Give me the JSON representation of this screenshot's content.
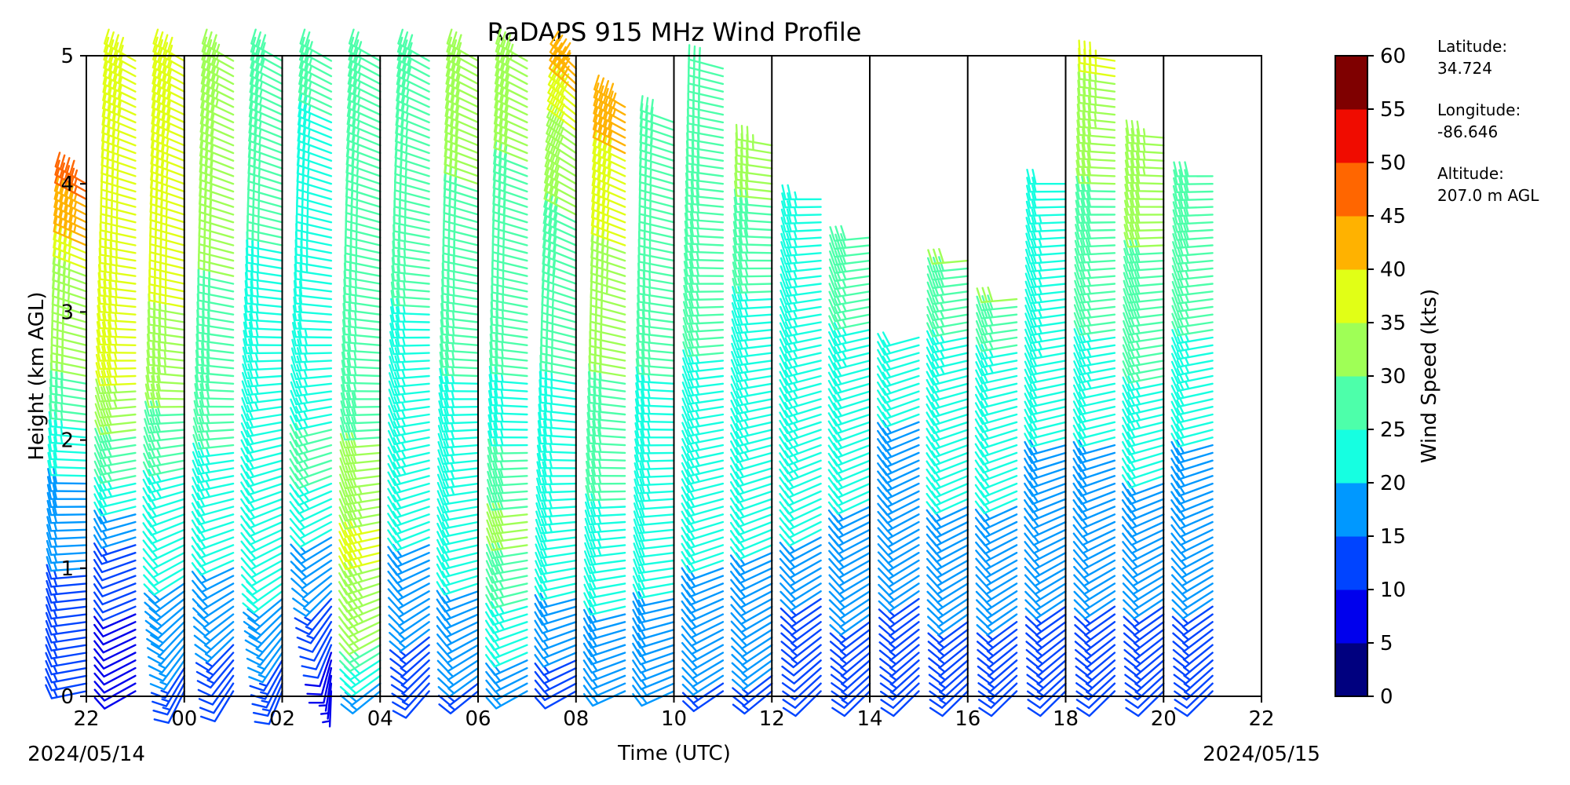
{
  "chart_data": {
    "type": "wind_barbs",
    "title": "RaDAPS 915 MHz Wind Profile",
    "xlabel": "Time (UTC)",
    "ylabel": "Height (km AGL)",
    "xlim": [
      22,
      46
    ],
    "ylim": [
      0,
      5
    ],
    "x_ticks": [
      22,
      24,
      26,
      28,
      30,
      32,
      34,
      36,
      38,
      40,
      42,
      44,
      46
    ],
    "x_tick_labels": [
      "22",
      "00",
      "02",
      "04",
      "06",
      "08",
      "10",
      "12",
      "14",
      "16",
      "18",
      "20",
      "22"
    ],
    "y_ticks": [
      0,
      1,
      2,
      3,
      4,
      5
    ],
    "y_tick_labels": [
      "0",
      "1",
      "2",
      "3",
      "4",
      "5"
    ],
    "start_date_label": "2024/05/14",
    "end_date_label": "2024/05/15",
    "hour_lines": [
      24,
      26,
      28,
      30,
      32,
      34,
      36,
      38,
      40,
      42,
      44
    ],
    "grid": false,
    "colorbar": {
      "label": "Wind Speed (kts)",
      "levels": [
        0,
        5,
        10,
        15,
        20,
        25,
        30,
        35,
        40,
        45,
        50,
        55,
        60
      ],
      "tick_labels": [
        "0",
        "5",
        "10",
        "15",
        "20",
        "25",
        "30",
        "35",
        "40",
        "45",
        "50",
        "55",
        "60"
      ],
      "colors": [
        "#00007f",
        "#0000ed",
        "#0044ff",
        "#0098ff",
        "#16ffe1",
        "#4dffaa",
        "#9fff56",
        "#e1ff16",
        "#ffb200",
        "#ff6600",
        "#f00c00",
        "#7f0000"
      ]
    },
    "site_info": {
      "latitude_label": "Latitude:",
      "latitude": "34.724",
      "longitude_label": "Longitude:",
      "longitude": "-86.646",
      "altitude_label": "Altitude:",
      "altitude": "207.0 m AGL"
    },
    "profiles": [
      {
        "time": 22.0,
        "top_km": 4.05,
        "spd": [
          [
            0,
            14
          ],
          [
            1.0,
            15
          ],
          [
            1.8,
            21
          ],
          [
            2.5,
            30
          ],
          [
            3.3,
            35
          ],
          [
            3.6,
            44
          ],
          [
            4.05,
            46
          ]
        ],
        "dir": [
          [
            0,
            258
          ],
          [
            1.8,
            272
          ],
          [
            4.05,
            300
          ]
        ]
      },
      {
        "time": 23.0,
        "top_km": 5.0,
        "spd": [
          [
            0,
            8
          ],
          [
            1.0,
            11
          ],
          [
            1.7,
            25
          ],
          [
            2.5,
            36
          ],
          [
            5.0,
            38
          ]
        ],
        "dir": [
          [
            0,
            240
          ],
          [
            1.0,
            250
          ],
          [
            2.0,
            262
          ],
          [
            5.0,
            300
          ]
        ]
      },
      {
        "time": 24.0,
        "top_km": 5.0,
        "spd": [
          [
            0,
            12
          ],
          [
            0.6,
            19
          ],
          [
            1.5,
            22
          ],
          [
            2.5,
            33
          ],
          [
            3.5,
            37
          ],
          [
            5.0,
            38
          ]
        ],
        "dir": [
          [
            0,
            205
          ],
          [
            1.0,
            240
          ],
          [
            2.5,
            275
          ],
          [
            5.0,
            300
          ]
        ]
      },
      {
        "time": 25.0,
        "top_km": 5.0,
        "spd": [
          [
            0,
            10
          ],
          [
            0.8,
            19
          ],
          [
            1.5,
            22
          ],
          [
            2.5,
            29
          ],
          [
            4.0,
            31
          ],
          [
            5.0,
            34
          ]
        ],
        "dir": [
          [
            0,
            210
          ],
          [
            1.0,
            245
          ],
          [
            2.5,
            275
          ],
          [
            5.0,
            300
          ]
        ]
      },
      {
        "time": 26.0,
        "top_km": 5.0,
        "spd": [
          [
            0,
            12
          ],
          [
            0.8,
            20
          ],
          [
            1.5,
            21
          ],
          [
            3.0,
            24
          ],
          [
            5.0,
            28
          ]
        ],
        "dir": [
          [
            0,
            200
          ],
          [
            1.0,
            240
          ],
          [
            3.0,
            275
          ],
          [
            5.0,
            300
          ]
        ]
      },
      {
        "time": 27.0,
        "top_km": 5.0,
        "spd": [
          [
            0,
            5
          ],
          [
            0.8,
            15
          ],
          [
            1.8,
            26
          ],
          [
            3.0,
            22
          ],
          [
            5.0,
            26
          ]
        ],
        "dir": [
          [
            0,
            180
          ],
          [
            1.0,
            235
          ],
          [
            3.0,
            275
          ],
          [
            5.0,
            300
          ]
        ]
      },
      {
        "time": 28.0,
        "top_km": 5.0,
        "spd": [
          [
            0,
            16
          ],
          [
            0.5,
            32
          ],
          [
            1.2,
            36
          ],
          [
            2.5,
            26
          ],
          [
            5.0,
            25
          ]
        ],
        "dir": [
          [
            0,
            230
          ],
          [
            1.0,
            255
          ],
          [
            5.0,
            300
          ]
        ]
      },
      {
        "time": 29.0,
        "top_km": 5.0,
        "spd": [
          [
            0,
            12
          ],
          [
            0.8,
            17
          ],
          [
            1.5,
            22
          ],
          [
            3.0,
            25
          ],
          [
            5.0,
            28
          ]
        ],
        "dir": [
          [
            0,
            220
          ],
          [
            1.0,
            245
          ],
          [
            5.0,
            300
          ]
        ]
      },
      {
        "time": 30.0,
        "top_km": 5.0,
        "spd": [
          [
            0,
            14
          ],
          [
            1.0,
            21
          ],
          [
            2.5,
            25
          ],
          [
            4.0,
            30
          ],
          [
            5.0,
            31
          ]
        ],
        "dir": [
          [
            0,
            230
          ],
          [
            1.0,
            255
          ],
          [
            5.0,
            300
          ]
        ]
      },
      {
        "time": 31.0,
        "top_km": 5.0,
        "spd": [
          [
            0,
            16
          ],
          [
            1.3,
            32
          ],
          [
            2.0,
            24
          ],
          [
            3.0,
            26
          ],
          [
            5.0,
            33
          ]
        ],
        "dir": [
          [
            0,
            240
          ],
          [
            1.0,
            260
          ],
          [
            5.0,
            300
          ]
        ]
      },
      {
        "time": 32.0,
        "top_km": 4.95,
        "spd": [
          [
            0,
            12
          ],
          [
            1.0,
            22
          ],
          [
            2.5,
            25
          ],
          [
            4.2,
            32
          ],
          [
            4.95,
            44
          ]
        ],
        "dir": [
          [
            0,
            240
          ],
          [
            1.0,
            260
          ],
          [
            4.0,
            300
          ],
          [
            4.95,
            315
          ]
        ]
      },
      {
        "time": 33.0,
        "top_km": 4.6,
        "spd": [
          [
            0,
            16
          ],
          [
            1.0,
            22
          ],
          [
            2.0,
            28
          ],
          [
            3.0,
            32
          ],
          [
            4.0,
            38
          ],
          [
            4.6,
            44
          ]
        ],
        "dir": [
          [
            0,
            245
          ],
          [
            1.0,
            262
          ],
          [
            3.0,
            285
          ],
          [
            4.6,
            300
          ]
        ]
      },
      {
        "time": 34.0,
        "top_km": 4.5,
        "spd": [
          [
            0,
            16
          ],
          [
            1.0,
            21
          ],
          [
            2.0,
            24
          ],
          [
            3.0,
            26
          ],
          [
            4.5,
            28
          ]
        ],
        "dir": [
          [
            0,
            245
          ],
          [
            1.0,
            262
          ],
          [
            4.5,
            290
          ]
        ]
      },
      {
        "time": 35.0,
        "top_km": 4.9,
        "spd": [
          [
            0,
            14
          ],
          [
            0.8,
            19
          ],
          [
            1.5,
            22
          ],
          [
            3.0,
            26
          ],
          [
            4.9,
            30
          ]
        ],
        "dir": [
          [
            0,
            235
          ],
          [
            1.0,
            250
          ],
          [
            4.9,
            285
          ]
        ]
      },
      {
        "time": 36.0,
        "top_km": 4.3,
        "spd": [
          [
            0,
            14
          ],
          [
            0.8,
            18
          ],
          [
            1.5,
            22
          ],
          [
            3.0,
            24
          ],
          [
            4.3,
            33
          ]
        ],
        "dir": [
          [
            0,
            230
          ],
          [
            1.0,
            245
          ],
          [
            4.3,
            280
          ]
        ]
      },
      {
        "time": 37.0,
        "top_km": 3.9,
        "spd": [
          [
            0,
            10
          ],
          [
            0.8,
            15
          ],
          [
            1.5,
            22
          ],
          [
            2.5,
            24
          ],
          [
            3.9,
            24
          ]
        ],
        "dir": [
          [
            0,
            225
          ],
          [
            1.0,
            240
          ],
          [
            3.9,
            270
          ]
        ]
      },
      {
        "time": 38.0,
        "top_km": 3.6,
        "spd": [
          [
            0,
            12
          ],
          [
            0.8,
            16
          ],
          [
            1.5,
            20
          ],
          [
            2.5,
            22
          ],
          [
            3.6,
            30
          ]
        ],
        "dir": [
          [
            0,
            225
          ],
          [
            1.0,
            240
          ],
          [
            3.6,
            265
          ]
        ]
      },
      {
        "time": 39.0,
        "top_km": 2.8,
        "spd": [
          [
            0,
            12
          ],
          [
            0.8,
            15
          ],
          [
            1.5,
            18
          ],
          [
            2.8,
            22
          ]
        ],
        "dir": [
          [
            0,
            225
          ],
          [
            1.0,
            238
          ],
          [
            2.8,
            255
          ]
        ]
      },
      {
        "time": 40.0,
        "top_km": 3.4,
        "spd": [
          [
            0,
            12
          ],
          [
            0.8,
            16
          ],
          [
            1.5,
            20
          ],
          [
            2.5,
            22
          ],
          [
            3.4,
            30
          ]
        ],
        "dir": [
          [
            0,
            225
          ],
          [
            1.0,
            240
          ],
          [
            3.4,
            265
          ]
        ]
      },
      {
        "time": 41.0,
        "top_km": 3.1,
        "spd": [
          [
            0,
            12
          ],
          [
            0.8,
            16
          ],
          [
            1.5,
            20
          ],
          [
            2.5,
            22
          ],
          [
            3.1,
            30
          ]
        ],
        "dir": [
          [
            0,
            225
          ],
          [
            1.0,
            240
          ],
          [
            3.1,
            265
          ]
        ]
      },
      {
        "time": 42.0,
        "top_km": 4.0,
        "spd": [
          [
            0,
            12
          ],
          [
            1.0,
            16
          ],
          [
            2.0,
            20
          ],
          [
            3.0,
            24
          ],
          [
            4.0,
            22
          ]
        ],
        "dir": [
          [
            0,
            225
          ],
          [
            1.0,
            240
          ],
          [
            2.0,
            255
          ],
          [
            4.0,
            270
          ]
        ]
      },
      {
        "time": 43.0,
        "top_km": 5.0,
        "spd": [
          [
            0,
            12
          ],
          [
            1.0,
            16
          ],
          [
            2.0,
            20
          ],
          [
            3.0,
            26
          ],
          [
            4.0,
            30
          ],
          [
            5.0,
            36
          ]
        ],
        "dir": [
          [
            0,
            225
          ],
          [
            1.0,
            240
          ],
          [
            2.0,
            255
          ],
          [
            5.0,
            280
          ]
        ]
      },
      {
        "time": 44.0,
        "top_km": 4.4,
        "spd": [
          [
            0,
            12
          ],
          [
            1.0,
            16
          ],
          [
            2.0,
            22
          ],
          [
            3.0,
            28
          ],
          [
            4.4,
            34
          ]
        ],
        "dir": [
          [
            0,
            225
          ],
          [
            1.0,
            240
          ],
          [
            2.0,
            255
          ],
          [
            4.4,
            275
          ]
        ]
      },
      {
        "time": 45.0,
        "top_km": 4.1,
        "spd": [
          [
            0,
            12
          ],
          [
            1.0,
            16
          ],
          [
            2.0,
            20
          ],
          [
            3.0,
            26
          ],
          [
            4.1,
            30
          ]
        ],
        "dir": [
          [
            0,
            225
          ],
          [
            1.0,
            240
          ],
          [
            2.0,
            255
          ],
          [
            4.1,
            270
          ]
        ]
      }
    ]
  }
}
